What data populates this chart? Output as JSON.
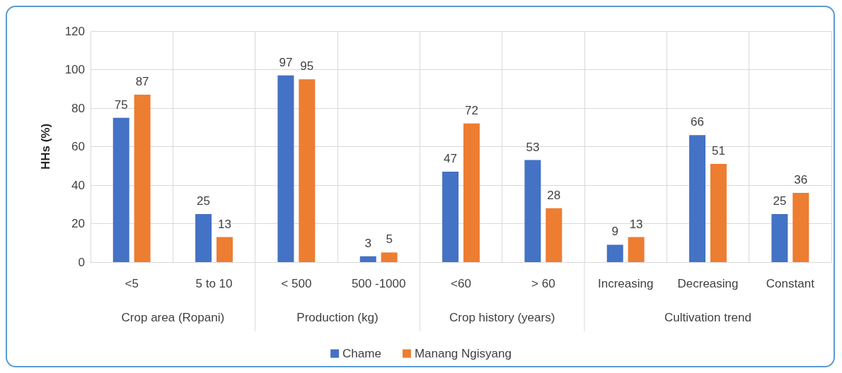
{
  "chart_data": {
    "type": "bar",
    "ylabel": "HHs (%)",
    "categories": [
      "<5",
      "5 to 10",
      "< 500",
      "500 -1000",
      "<60",
      "> 60",
      "Increasing",
      "Decreasing",
      "Constant"
    ],
    "series": [
      {
        "name": "Chame",
        "color": "#4472c4",
        "values": [
          75,
          25,
          97,
          3,
          47,
          53,
          9,
          66,
          25
        ]
      },
      {
        "name": "Manang Ngisyang",
        "color": "#ed7d31",
        "values": [
          87,
          13,
          95,
          5,
          72,
          28,
          13,
          51,
          36
        ]
      }
    ],
    "annotations": [
      "Crop area (Ropani)",
      "Production (kg)",
      "Crop history (years)",
      "Cultivation trend"
    ],
    "ylim": [
      0,
      120
    ],
    "yticks": [
      0,
      20,
      40,
      60,
      80,
      100,
      120
    ],
    "grid": true,
    "legend": "bottom",
    "data_labels": true
  }
}
